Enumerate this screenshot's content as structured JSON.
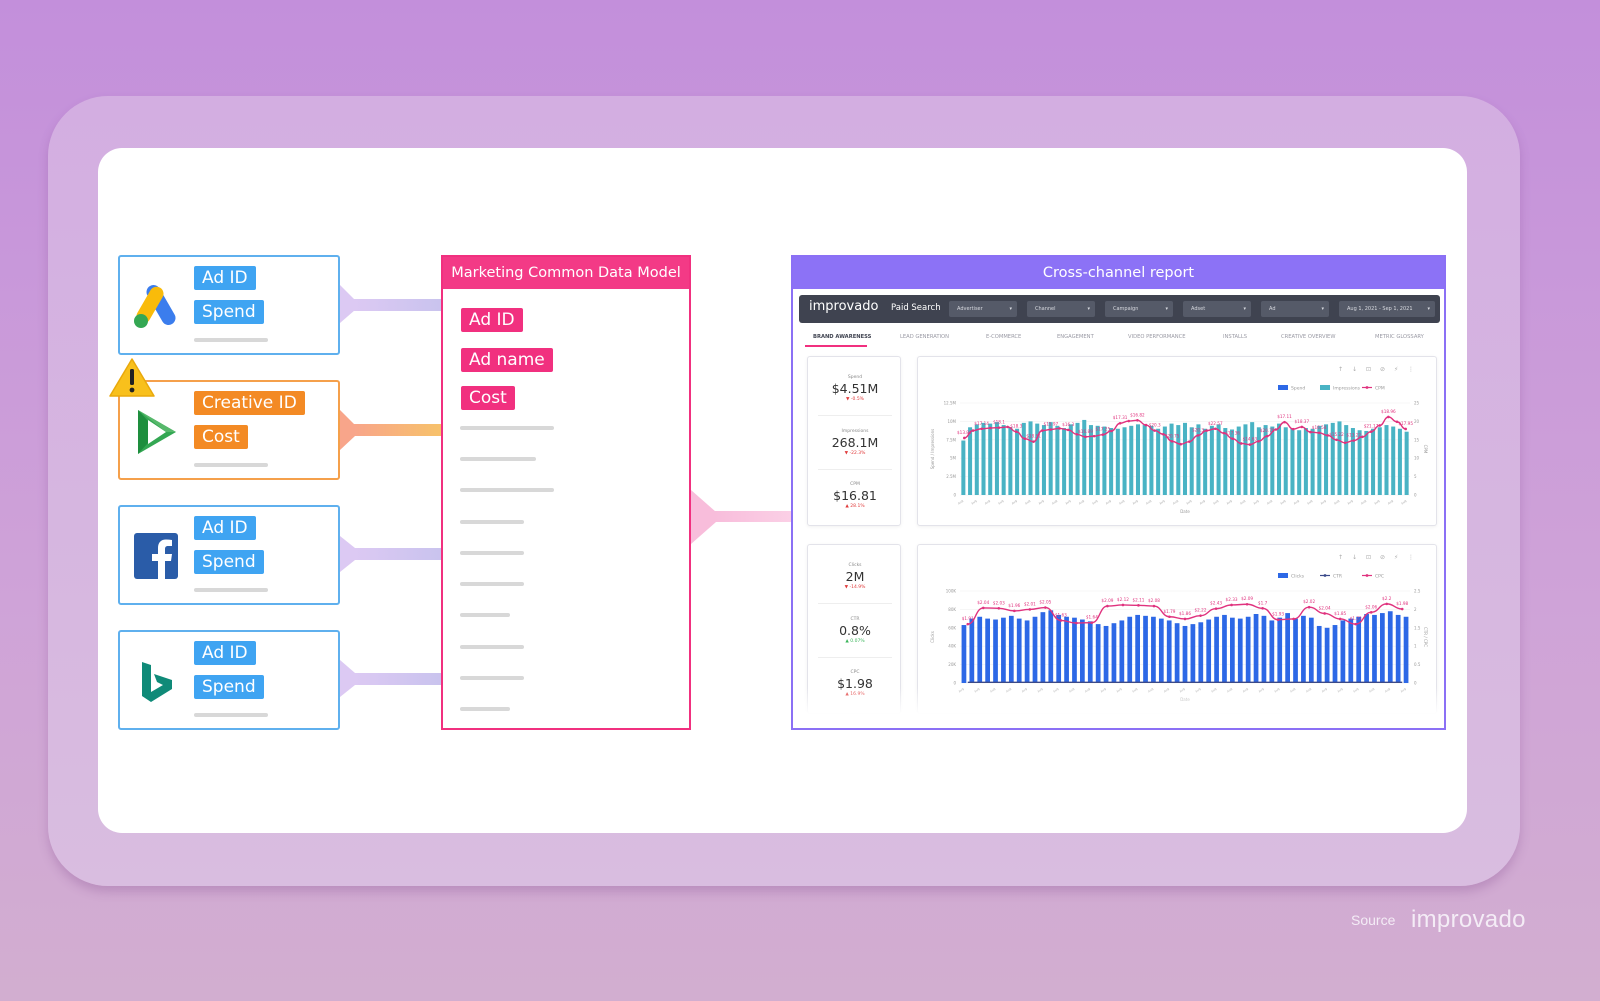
{
  "sources": [
    {
      "name": "google-ads",
      "logo_icon": "google-ads-logo-icon",
      "tags": [
        "Ad ID",
        "Spend"
      ],
      "color": "#3fa4f2",
      "warning": false
    },
    {
      "name": "google-dv360",
      "logo_icon": "google-play-triangle-logo-icon",
      "tags": [
        "Creative ID",
        "Cost"
      ],
      "color": "#f38a24",
      "warning": true
    },
    {
      "name": "facebook",
      "logo_icon": "facebook-logo-icon",
      "tags": [
        "Ad ID",
        "Spend"
      ],
      "color": "#3fa4f2",
      "warning": false
    },
    {
      "name": "bing-ads",
      "logo_icon": "bing-logo-icon",
      "tags": [
        "Ad ID",
        "Spend"
      ],
      "color": "#3fa4f2",
      "warning": false
    }
  ],
  "warning_icon": "warning-triangle-icon",
  "cdm": {
    "title": "Marketing Common Data Model",
    "fields": [
      "Ad ID",
      "Ad name",
      "Cost"
    ]
  },
  "report": {
    "title": "Cross-channel report",
    "brand": "improvado",
    "channel": "Paid Search",
    "filters": [
      "Advertiser",
      "Channel",
      "Campaign",
      "Adset",
      "Ad",
      "Aug 1, 2021 - Sep 1, 2021"
    ],
    "tabs": [
      "BRAND AWARENESS",
      "LEAD GENERATION",
      "E-COMMERCE",
      "ENGAGEMENT",
      "VIDEO PERFORMANCE",
      "INSTALLS",
      "CREATIVE OVERVIEW",
      "METRIC GLOSSARY"
    ],
    "active_tab": "BRAND AWARENESS",
    "kpis_top": [
      {
        "label": "Spend",
        "value": "$4.51M",
        "delta": "▼ -0.5%",
        "trend": "down"
      },
      {
        "label": "Impressions",
        "value": "268.1M",
        "delta": "▼ -22.3%",
        "trend": "down"
      },
      {
        "label": "CPM",
        "value": "$16.81",
        "delta": "▲ 28.1%",
        "trend": "down"
      }
    ],
    "kpis_bottom": [
      {
        "label": "Clicks",
        "value": "2M",
        "delta": "▼ -14.9%",
        "trend": "down"
      },
      {
        "label": "CTR",
        "value": "0.8%",
        "delta": "▲ 0.07%",
        "trend": "up"
      },
      {
        "label": "CPC",
        "value": "$1.98",
        "delta": "▲ 16.9%",
        "trend": "down"
      }
    ],
    "colors": {
      "down": "#e03a3a",
      "up": "#3bb55a",
      "pink": "#e0327e",
      "teal": "#49b3c4",
      "blue": "#2d68e6"
    }
  },
  "chart_data": [
    {
      "type": "bar",
      "ylabel": "Spend / Impressions",
      "y2label": "CPM",
      "xlabel": "Date",
      "yticks": [
        "0",
        "2.5M",
        "5M",
        "7.5M",
        "10M",
        "12.5M"
      ],
      "y2ticks": [
        "0",
        "5",
        "10",
        "15",
        "20",
        "25"
      ],
      "ylim": [
        0,
        12500000
      ],
      "y2lim": [
        0,
        25
      ],
      "legend": [
        "Spend",
        "Impressions",
        "CPM"
      ],
      "legend_position": "top-right",
      "series": [
        {
          "name": "Impressions",
          "kind": "bar",
          "values": [
            7.4,
            9.2,
            9.6,
            9.8,
            9.7,
            9.9,
            9.5,
            9.2,
            9.0,
            9.8,
            10.0,
            9.7,
            9.5,
            9.9,
            9.4,
            9.1,
            9.6,
            9.8,
            10.2,
            9.5,
            9.4,
            9.3,
            9.1,
            9.0,
            9.2,
            9.4,
            9.6,
            9.5,
            9.4,
            9.0,
            9.3,
            9.7,
            9.5,
            9.8,
            9.2,
            9.6,
            9.0,
            9.4,
            9.6,
            9.1,
            8.9,
            9.3,
            9.6,
            9.9,
            9.2,
            9.5,
            9.3,
            9.7,
            9.2,
            9.0,
            8.8,
            9.1,
            9.0,
            9.4,
            9.6,
            9.8,
            10.0,
            9.5,
            9.1,
            8.8,
            8.7,
            9.0,
            9.2,
            9.5,
            9.3,
            9.0,
            8.6
          ]
        },
        {
          "name": "CPM",
          "kind": "line",
          "values": [
            15.5,
            17.5,
            18.0,
            18.2,
            18.3,
            18.5,
            17.2,
            15.3,
            14.5,
            17.5,
            17.8,
            18.1,
            17.7,
            16.5,
            15.8,
            16.0,
            16.4,
            17.4,
            19.5,
            20.1,
            20.3,
            19.0,
            17.5,
            16.5,
            14.6,
            13.8,
            14.5,
            16.2,
            17.5,
            18.0,
            16.8,
            15.3,
            14.0,
            13.7,
            14.6,
            16.0,
            17.8,
            19.8,
            17.9,
            18.5,
            17.1,
            16.9,
            16.2,
            15.0,
            14.2,
            14.8,
            15.8,
            17.2,
            18.9,
            21.2,
            19.9,
            17.95
          ]
        }
      ],
      "data_labels": [
        "$13.84",
        "$17.14",
        "$18.1",
        "$18.3",
        "$18.51",
        "$15.97",
        "$16.3",
        "$16.89",
        "$17.25",
        "$17.31",
        "$16.82",
        "$20.3",
        "$20.75",
        "$20.3",
        "$22.57",
        "$17.36",
        "$14.63",
        "$20.75",
        "$17.11",
        "$18.37",
        "$16.54",
        "$15.22",
        "$13.22",
        "$21.17",
        "$18.96",
        "$17.95"
      ]
    },
    {
      "type": "bar",
      "ylabel": "Clicks",
      "y2label": "CTR / CPC",
      "xlabel": "Date",
      "yticks": [
        "0",
        "20K",
        "40K",
        "60K",
        "80K",
        "100K"
      ],
      "y2ticks": [
        "0",
        "0.5",
        "1",
        "1.5",
        "2",
        "2.5"
      ],
      "ylim": [
        0,
        100000
      ],
      "y2lim": [
        0,
        2.5
      ],
      "legend": [
        "Clicks",
        "CTR",
        "CPC"
      ],
      "legend_position": "top-right",
      "series": [
        {
          "name": "Clicks",
          "kind": "bar",
          "values": [
            63,
            70,
            72,
            70,
            69,
            71,
            73,
            70,
            68,
            72,
            77,
            79,
            74,
            72,
            71,
            69,
            67,
            64,
            62,
            65,
            68,
            72,
            74,
            73,
            72,
            70,
            68,
            65,
            62,
            64,
            66,
            69,
            72,
            74,
            71,
            70,
            72,
            75,
            73,
            68,
            71,
            76,
            70,
            73,
            71,
            62,
            60,
            63,
            68,
            70,
            72,
            75,
            74,
            76,
            78,
            74,
            72
          ]
        },
        {
          "name": "CPC",
          "kind": "line",
          "values": [
            1.6,
            2.04,
            2.03,
            1.96,
            2.0,
            2.05,
            1.7,
            1.63,
            1.64,
            2.09,
            2.12,
            2.11,
            2.09,
            1.8,
            1.74,
            1.83,
            2.02,
            2.12,
            2.14,
            2.03,
            1.72,
            1.74,
            2.06,
            1.89,
            1.74,
            1.6,
            1.92,
            2.15,
            2.01
          ]
        },
        {
          "name": "CTR",
          "kind": "line",
          "values": [
            0.02,
            0.02,
            0.02,
            0.02,
            0.02,
            0.02,
            0.02,
            0.02,
            0.02,
            0.02,
            0.02,
            0.02,
            0.02,
            0.02,
            0.02,
            0.02,
            0.02,
            0.02,
            0.02,
            0.02,
            0.02,
            0.02,
            0.02,
            0.02,
            0.02,
            0.02,
            0.02,
            0.02,
            0.02
          ]
        }
      ],
      "data_labels": [
        "$1.91",
        "$2.04",
        "$2.03",
        "$1.96",
        "$2.01",
        "$2.05",
        "$1.63",
        "$1.64",
        "$2.09",
        "$2.12",
        "$2.11",
        "$2.08",
        "$1.79",
        "$1.86",
        "$2.22",
        "$2.43",
        "$2.33",
        "$2.09",
        "$1.7",
        "$1.93",
        "$2.02",
        "$2.04",
        "$1.85",
        "$1.73",
        "$2.06",
        "$2.2",
        "$1.98"
      ]
    }
  ],
  "source_label": "Source",
  "source_brand": "improvado"
}
